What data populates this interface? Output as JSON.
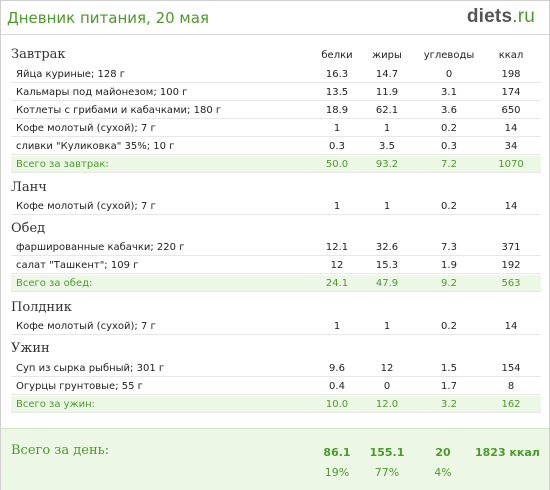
{
  "header": {
    "title": "Дневник питания, 20 мая",
    "logo_main": "diets",
    "logo_tld": ".ru"
  },
  "columns": {
    "protein": "белки",
    "fat": "жиры",
    "carbs": "углеводы",
    "kcal": "ккал"
  },
  "breakfast": {
    "title": "Завтрак",
    "items": [
      {
        "name": "Яйца куриные; 128 г",
        "protein": "16.3",
        "fat": "14.7",
        "carbs": "0",
        "kcal": "198"
      },
      {
        "name": "Кальмары под майонезом; 100 г",
        "protein": "13.5",
        "fat": "11.9",
        "carbs": "3.1",
        "kcal": "174"
      },
      {
        "name": "Котлеты с грибами и кабачками; 180 г",
        "protein": "18.9",
        "fat": "62.1",
        "carbs": "3.6",
        "kcal": "650"
      },
      {
        "name": "Кофе молотый (сухой); 7 г",
        "protein": "1",
        "fat": "1",
        "carbs": "0.2",
        "kcal": "14"
      },
      {
        "name": "сливки \"Куликовка\" 35%; 10 г",
        "protein": "0.3",
        "fat": "3.5",
        "carbs": "0.3",
        "kcal": "34"
      }
    ],
    "total": {
      "name": "Всего за завтрак:",
      "protein": "50.0",
      "fat": "93.2",
      "carbs": "7.2",
      "kcal": "1070"
    }
  },
  "lunch": {
    "title": "Ланч",
    "items": [
      {
        "name": "Кофе молотый (сухой); 7 г",
        "protein": "1",
        "fat": "1",
        "carbs": "0.2",
        "kcal": "14"
      }
    ]
  },
  "dinner": {
    "title": "Обед",
    "items": [
      {
        "name": "фаршированные кабачки; 220 г",
        "protein": "12.1",
        "fat": "32.6",
        "carbs": "7.3",
        "kcal": "371"
      },
      {
        "name": "салат \"Ташкент\"; 109 г",
        "protein": "12",
        "fat": "15.3",
        "carbs": "1.9",
        "kcal": "192"
      }
    ],
    "total": {
      "name": "Всего за обед:",
      "protein": "24.1",
      "fat": "47.9",
      "carbs": "9.2",
      "kcal": "563"
    }
  },
  "snack": {
    "title": "Полдник",
    "items": [
      {
        "name": "Кофе молотый (сухой); 7 г",
        "protein": "1",
        "fat": "1",
        "carbs": "0.2",
        "kcal": "14"
      }
    ]
  },
  "supper": {
    "title": "Ужин",
    "items": [
      {
        "name": "Суп из сырка рыбный; 301 г",
        "protein": "9.6",
        "fat": "12",
        "carbs": "1.5",
        "kcal": "154"
      },
      {
        "name": "Огурцы грунтовые; 55 г",
        "protein": "0.4",
        "fat": "0",
        "carbs": "1.7",
        "kcal": "8"
      }
    ],
    "total": {
      "name": "Всего за ужин:",
      "protein": "10.0",
      "fat": "12.0",
      "carbs": "3.2",
      "kcal": "162"
    }
  },
  "day_total": {
    "label": "Всего за день:",
    "protein": "86.1",
    "fat": "155.1",
    "carbs": "20",
    "kcal": "1823 ккал",
    "protein_pct": "19%",
    "fat_pct": "77%",
    "carbs_pct": "4%"
  },
  "colors": {
    "accent": "#4c9a2a",
    "total_bg": "#edf7e6"
  }
}
